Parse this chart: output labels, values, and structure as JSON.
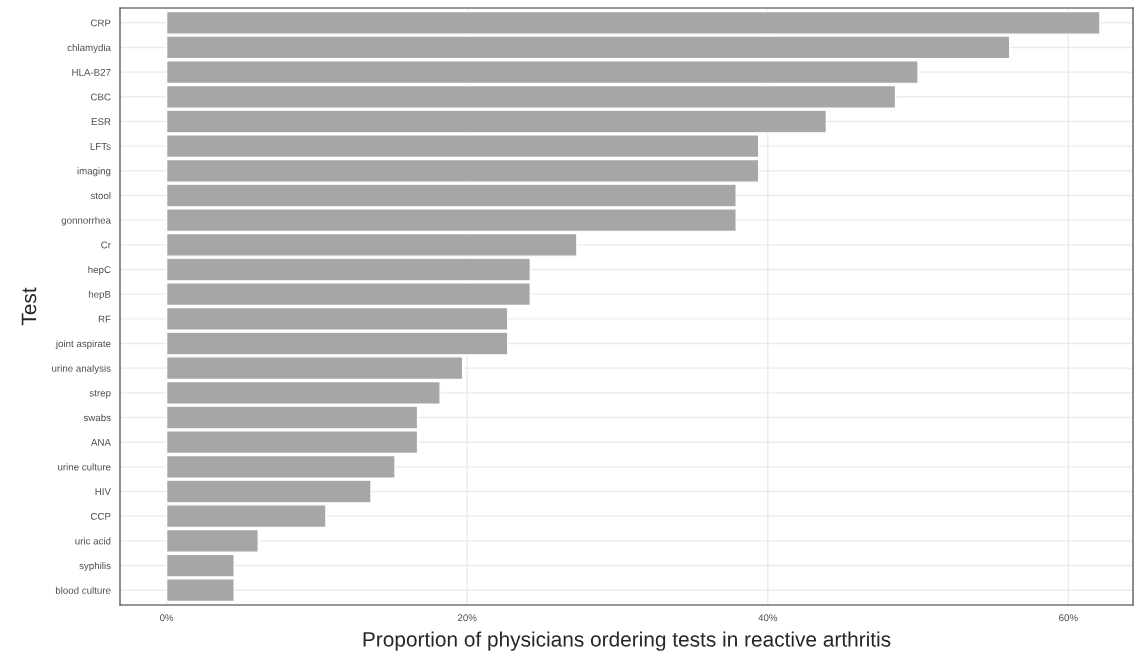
{
  "chart_data": {
    "type": "bar",
    "orientation": "horizontal",
    "xlabel": "Proportion of physicians ordering tests in reactive arthritis",
    "ylabel": "Test",
    "categories": [
      "CRP",
      "chlamydia",
      "HLA-B27",
      "CBC",
      "ESR",
      "LFTs",
      "imaging",
      "stool",
      "gonnorrhea",
      "Cr",
      "hepC",
      "hepB",
      "RF",
      "joint aspirate",
      "urine analysis",
      "strep",
      "swabs",
      "ANA",
      "urine culture",
      "HIV",
      "CCP",
      "uric acid",
      "syphilis",
      "blood culture"
    ],
    "values": [
      62.1,
      56.1,
      50.0,
      48.5,
      43.9,
      39.4,
      39.4,
      37.9,
      37.9,
      27.3,
      24.2,
      24.2,
      22.7,
      22.7,
      19.7,
      18.2,
      16.7,
      16.7,
      15.2,
      13.6,
      10.6,
      6.1,
      4.5,
      4.5
    ],
    "color": "#a6a6a6",
    "xlim": [
      -3.1,
      64.3
    ],
    "xticks": [
      {
        "value": 0,
        "label": "0%"
      },
      {
        "value": 20,
        "label": "20%"
      },
      {
        "value": 40,
        "label": "40%"
      },
      {
        "value": 60,
        "label": "60%"
      }
    ],
    "grid": true
  }
}
